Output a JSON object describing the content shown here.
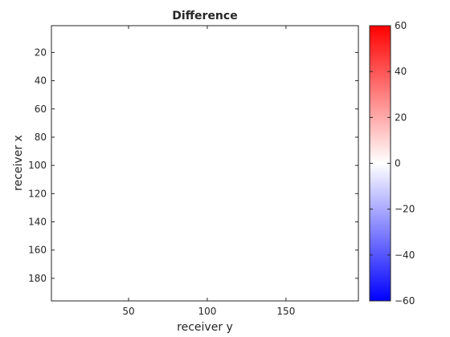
{
  "chart_data": {
    "type": "heatmap",
    "title": "Difference",
    "xlabel": "receiver y",
    "ylabel": "receiver x",
    "xlim": [
      1,
      196
    ],
    "ylim": [
      1,
      196
    ],
    "y_reversed": true,
    "xticks": [
      50,
      100,
      150
    ],
    "yticks": [
      20,
      40,
      60,
      80,
      100,
      120,
      140,
      160,
      180
    ],
    "colorbar": {
      "colormap": "blue-white-red",
      "limits": [
        -60,
        60
      ],
      "ticks": [
        60,
        40,
        20,
        0,
        -20,
        -40,
        -60
      ],
      "tick_labels": [
        "60",
        "40",
        "20",
        "0",
        "−20",
        "−40",
        "−60"
      ],
      "colors": {
        "low": "#0000ff",
        "mid": "#ffffff",
        "high": "#ff0000"
      }
    },
    "values_summary": "Difference values are approximately 0 across the entire receiver grid (field appears uniformly white)."
  }
}
